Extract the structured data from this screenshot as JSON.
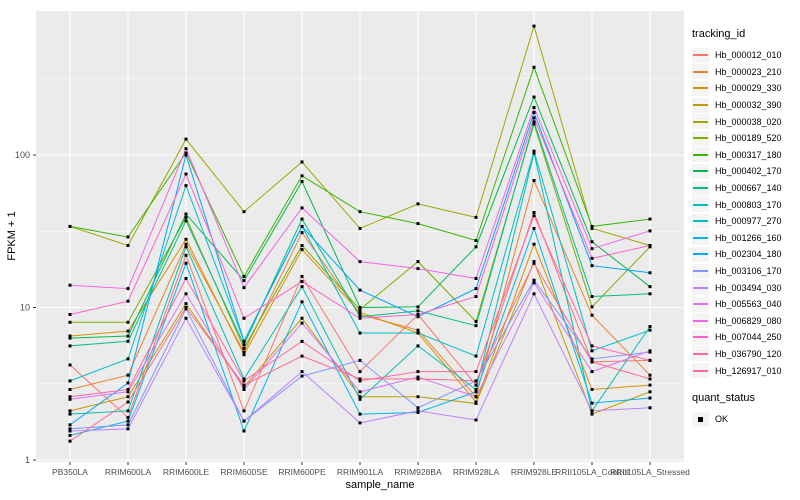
{
  "chart_data": {
    "type": "line",
    "title": "",
    "xlabel": "sample_name",
    "ylabel": "FPKM + 1",
    "yscale": "log10",
    "ylim": [
      1,
      880
    ],
    "yticks": [
      1,
      10,
      100
    ],
    "minor_gridlines": [
      3.162,
      31.62,
      316.2
    ],
    "grid": "on",
    "panel_bg": "#EBEBEB",
    "grid_color": "#FFFFFF",
    "point_color": "#000000",
    "tick_label_color": "#4D4D4D",
    "legend_position": "right",
    "categories": [
      "PB350LA",
      "RRIM600LA",
      "RRIM600LE",
      "RRIM600SE",
      "RRIM600PE",
      "RRIM901LA",
      "RRIM928BA",
      "RRIM928LA",
      "RRIM928LE",
      "RRII105LA_Control",
      "RRII105LA_Stressed"
    ],
    "series": [
      {
        "name": "Hb_000012_010",
        "color": "#F8766D",
        "values": [
          4.2,
          1.9,
          22,
          2.1,
          16,
          3.8,
          9.0,
          3.1,
          42,
          4.4,
          4.5
        ]
      },
      {
        "name": "Hb_000023_210",
        "color": "#EA8331",
        "values": [
          2.9,
          3.6,
          26,
          5.1,
          31,
          9.0,
          7.1,
          2.6,
          68,
          8.9,
          3.6
        ]
      },
      {
        "name": "Hb_000029_330",
        "color": "#D89000",
        "values": [
          6.5,
          7.0,
          28,
          4.9,
          24,
          9.3,
          6.8,
          2.4,
          26,
          2.9,
          3.1
        ]
      },
      {
        "name": "Hb_000032_390",
        "color": "#C09B00",
        "values": [
          2.1,
          2.6,
          10.6,
          3.0,
          8.5,
          2.6,
          2.6,
          2.35,
          20,
          2.0,
          2.8
        ]
      },
      {
        "name": "Hb_000038_020",
        "color": "#A3A500",
        "values": [
          34,
          25.5,
          127,
          42.5,
          90,
          33,
          47.8,
          39,
          700,
          33,
          25.5
        ]
      },
      {
        "name": "Hb_000189_520",
        "color": "#7CAE00",
        "values": [
          8.0,
          8.0,
          39,
          5.4,
          25.5,
          9.7,
          20,
          8.1,
          160,
          10.1,
          25
        ]
      },
      {
        "name": "Hb_000317_180",
        "color": "#39B600",
        "values": [
          34,
          29,
          103,
          16,
          73,
          42.5,
          35.5,
          27.5,
          376,
          34,
          38
        ]
      },
      {
        "name": "Hb_000402_170",
        "color": "#00BB4E",
        "values": [
          6.3,
          6.5,
          41,
          15,
          67,
          10,
          10.1,
          25,
          240,
          27,
          13.7
        ]
      },
      {
        "name": "Hb_000667_140",
        "color": "#00C087",
        "values": [
          5.6,
          6.0,
          37,
          5.7,
          38,
          8.7,
          9.5,
          7.6,
          165,
          11.8,
          12.3
        ]
      },
      {
        "name": "Hb_000803_170",
        "color": "#00C0B4",
        "values": [
          2.0,
          2.1,
          25,
          3.4,
          13.7,
          2.5,
          5.6,
          2.9,
          103,
          2.1,
          7.5
        ]
      },
      {
        "name": "Hb_000977_270",
        "color": "#00BFC4",
        "values": [
          3.3,
          4.6,
          63,
          6.0,
          34,
          6.8,
          6.8,
          4.8,
          106,
          5.2,
          7.1
        ]
      },
      {
        "name": "Hb_001266_160",
        "color": "#00B5EE",
        "values": [
          1.45,
          1.8,
          19.5,
          1.55,
          10.9,
          2.0,
          2.05,
          2.8,
          33,
          2.36,
          2.55
        ]
      },
      {
        "name": "Hb_002304_180",
        "color": "#00A5FF",
        "values": [
          1.7,
          3.2,
          100,
          6.0,
          34,
          13,
          8.7,
          13.3,
          190,
          18.8,
          16.9
        ]
      },
      {
        "name": "Hb_003106_170",
        "color": "#7F96FF",
        "values": [
          1.6,
          1.7,
          9.8,
          1.8,
          3.55,
          4.5,
          2.2,
          3.3,
          15.1,
          4.6,
          5.1
        ]
      },
      {
        "name": "Hb_003494_030",
        "color": "#BC81FF",
        "values": [
          1.55,
          1.6,
          8.5,
          1.8,
          3.8,
          1.75,
          2.1,
          1.83,
          12.3,
          2.1,
          2.2
        ]
      },
      {
        "name": "Hb_005563_040",
        "color": "#DC71FA",
        "values": [
          2.5,
          2.8,
          12.3,
          2.9,
          7.9,
          2.8,
          3.5,
          2.6,
          14.5,
          3.8,
          5.2
        ]
      },
      {
        "name": "Hb_006829_080",
        "color": "#F265E6",
        "values": [
          14,
          13.3,
          110,
          13.5,
          45,
          20,
          18,
          15.5,
          205,
          24.3,
          31.8
        ]
      },
      {
        "name": "Hb_007044_250",
        "color": "#FF61C7",
        "values": [
          9.0,
          11,
          75,
          8.5,
          14.8,
          8.5,
          9.0,
          11.8,
          175,
          21,
          25.5
        ]
      },
      {
        "name": "Hb_036790_120",
        "color": "#FF65A8",
        "values": [
          2.6,
          2.9,
          15.5,
          3.3,
          6.0,
          3.3,
          3.8,
          3.8,
          40,
          5.6,
          4.5
        ]
      },
      {
        "name": "Hb_126917_010",
        "color": "#FF6C8F",
        "values": [
          1.33,
          2.4,
          10,
          3.1,
          4.8,
          3.4,
          3.4,
          3.3,
          19.5,
          4.4,
          3.4
        ]
      }
    ],
    "legend": {
      "title": "tracking_id"
    },
    "quant_legend": {
      "title": "quant_status",
      "entries": [
        "OK"
      ]
    }
  }
}
